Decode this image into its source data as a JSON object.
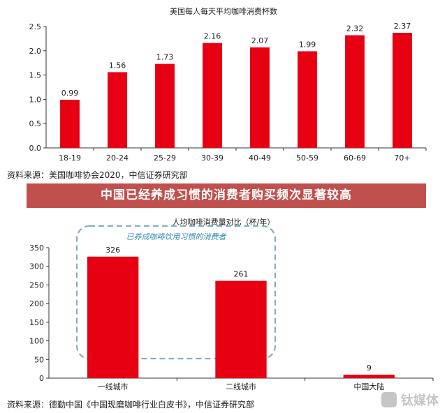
{
  "colors": {
    "bar": "#e60012",
    "banner": "#c0504d",
    "highlight_box": "#7fb2c0",
    "highlight_text": "#2e8bb0"
  },
  "banner_text": "中国已经养成习惯的消费者购买频次显著较高",
  "watermark_icon": "tmt-logo-icon",
  "chart_data": [
    {
      "type": "bar",
      "title": "美国每人每天平均咖啡消费杯数",
      "categories": [
        "18-19",
        "20-24",
        "25-29",
        "30-39",
        "40-49",
        "50-59",
        "60-69",
        "70+"
      ],
      "values": [
        0.99,
        1.56,
        1.73,
        2.16,
        2.07,
        1.99,
        2.32,
        2.37
      ],
      "value_labels": [
        "0.99",
        "1.56",
        "1.73",
        "2.16",
        "2.07",
        "1.99",
        "2.32",
        "2.37"
      ],
      "ylim": [
        0,
        2.5
      ],
      "yticks": [
        "0.0",
        "0.5",
        "1.0",
        "1.5",
        "2.0",
        "2.5"
      ],
      "grid": false,
      "source": "资料来源：美国咖啡协会2020，中信证券研究部"
    },
    {
      "type": "bar",
      "title": "人均咖啡消费量对比（杯/年）",
      "categories": [
        "一线城市",
        "二线城市",
        "中国大陆"
      ],
      "values": [
        326,
        261,
        9
      ],
      "value_labels": [
        "326",
        "261",
        "9"
      ],
      "ylim": [
        0,
        350
      ],
      "yticks": [
        "0",
        "50",
        "100",
        "150",
        "200",
        "250",
        "300",
        "350"
      ],
      "grid": false,
      "annotation": "已养成咖啡饮用习惯的消费者",
      "source": "资料来源：德勤中国《中国现磨咖啡行业白皮书》，中信证券研究部"
    }
  ]
}
